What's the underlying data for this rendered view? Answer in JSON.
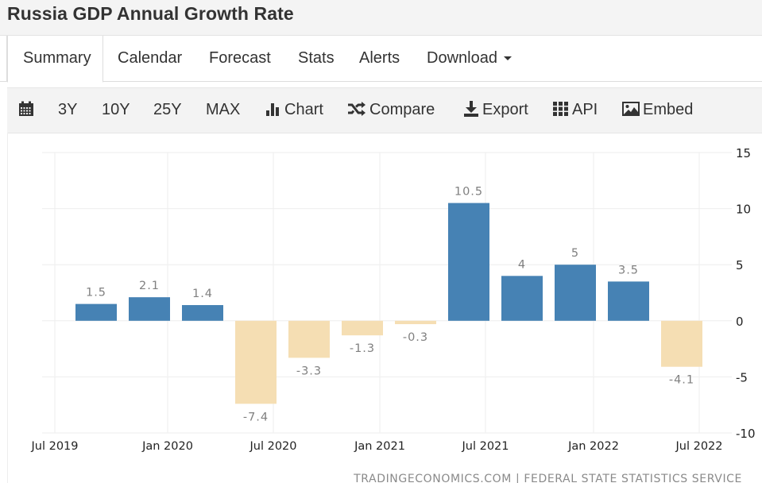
{
  "page": {
    "title": "Russia GDP Annual Growth Rate"
  },
  "tabs": [
    {
      "label": "Summary",
      "active": true
    },
    {
      "label": "Calendar",
      "active": false
    },
    {
      "label": "Forecast",
      "active": false
    },
    {
      "label": "Stats",
      "active": false
    },
    {
      "label": "Alerts",
      "active": false
    },
    {
      "label": "Download",
      "active": false,
      "dropdown": true
    }
  ],
  "toolbar": {
    "calendar_icon": "calendar-icon",
    "ranges": [
      "3Y",
      "10Y",
      "25Y",
      "MAX"
    ],
    "actions": [
      {
        "label": "Chart",
        "icon": "bar-chart-icon"
      },
      {
        "label": "Compare",
        "icon": "shuffle-icon"
      },
      {
        "label": "Export",
        "icon": "download-icon"
      },
      {
        "label": "API",
        "icon": "grid-icon"
      },
      {
        "label": "Embed",
        "icon": "image-icon"
      }
    ]
  },
  "colors": {
    "positive": "#4682b4",
    "negative": "#f5deb3",
    "grid": "#eeeeee",
    "label": "#808080",
    "axis_text": "#222222"
  },
  "chart_data": {
    "type": "bar",
    "title": "Russia GDP Annual Growth Rate",
    "xlabel": "",
    "ylabel": "",
    "categories": [
      "Q3 2019",
      "Q4 2019",
      "Q1 2020",
      "Q2 2020",
      "Q3 2020",
      "Q4 2020",
      "Q1 2021",
      "Q2 2021",
      "Q3 2021",
      "Q4 2021",
      "Q1 2022",
      "Q2 2022"
    ],
    "values": [
      1.5,
      2.1,
      1.4,
      -7.4,
      -3.3,
      -1.3,
      -0.3,
      10.5,
      4,
      5,
      3.5,
      -4.1
    ],
    "data_labels": [
      "1.5",
      "2.1",
      "1.4",
      "-7.4",
      "-3.3",
      "-1.3",
      "-0.3",
      "10.5",
      "4",
      "5",
      "3.5",
      "-4.1"
    ],
    "x_ticks": [
      "Jul 2019",
      "Jan 2020",
      "Jul 2020",
      "Jan 2021",
      "Jul 2021",
      "Jan 2022",
      "Jul 2022"
    ],
    "y_ticks": [
      15,
      10,
      5,
      0,
      -5,
      -10
    ],
    "ylim": [
      -10,
      15
    ],
    "grid": true,
    "y_axis_side": "right",
    "legend": "none",
    "source": "TRADINGECONOMICS.COM | FEDERAL STATE STATISTICS SERVICE"
  }
}
